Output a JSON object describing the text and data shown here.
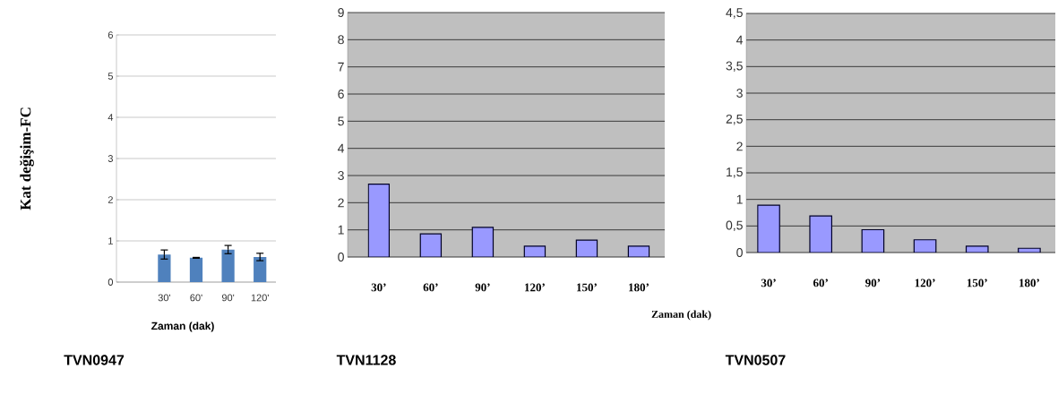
{
  "chart_data": [
    {
      "type": "bar",
      "title": "TVN0947",
      "xlabel": "Zaman (dak)",
      "ylabel": "Kat değişim-FC",
      "categories": [
        null,
        "30'",
        "60'",
        "90'",
        "120'"
      ],
      "values": [
        null,
        0.67,
        0.59,
        0.79,
        0.61
      ],
      "errors": [
        null,
        0.11,
        0.01,
        0.1,
        0.09
      ],
      "color": "#4f81bd",
      "ylim": [
        0,
        6
      ],
      "yticks": [
        0,
        1,
        2,
        3,
        4,
        5,
        6
      ],
      "grid": "y"
    },
    {
      "type": "bar",
      "title": "TVN1128",
      "categories": [
        "30’",
        "60’",
        "90’",
        "120’",
        "150’",
        "180’"
      ],
      "values": [
        2.68,
        0.85,
        1.09,
        0.4,
        0.62,
        0.4
      ],
      "color": "#9999ff",
      "ylim": [
        0,
        9
      ],
      "yticks": [
        0,
        1,
        2,
        3,
        4,
        5,
        6,
        7,
        8,
        9
      ],
      "grid": "y"
    },
    {
      "type": "bar",
      "title": "TVN0507",
      "xlabel": "Zaman  (dak)",
      "categories": [
        "30’",
        "60’",
        "90’",
        "120’",
        "150’",
        "180’"
      ],
      "values": [
        0.89,
        0.69,
        0.43,
        0.24,
        0.12,
        0.08
      ],
      "color": "#9999ff",
      "ylim": [
        0,
        4.5
      ],
      "yticks": [
        0,
        {
          "value": 0.5,
          "label": "0,5"
        },
        1,
        {
          "value": 1.5,
          "label": "1,5"
        },
        2,
        {
          "value": 2.5,
          "label": "2,5"
        },
        3,
        {
          "value": 3.5,
          "label": "3,5"
        },
        4,
        {
          "value": 4.5,
          "label": "4,5"
        }
      ],
      "grid": "y"
    }
  ]
}
